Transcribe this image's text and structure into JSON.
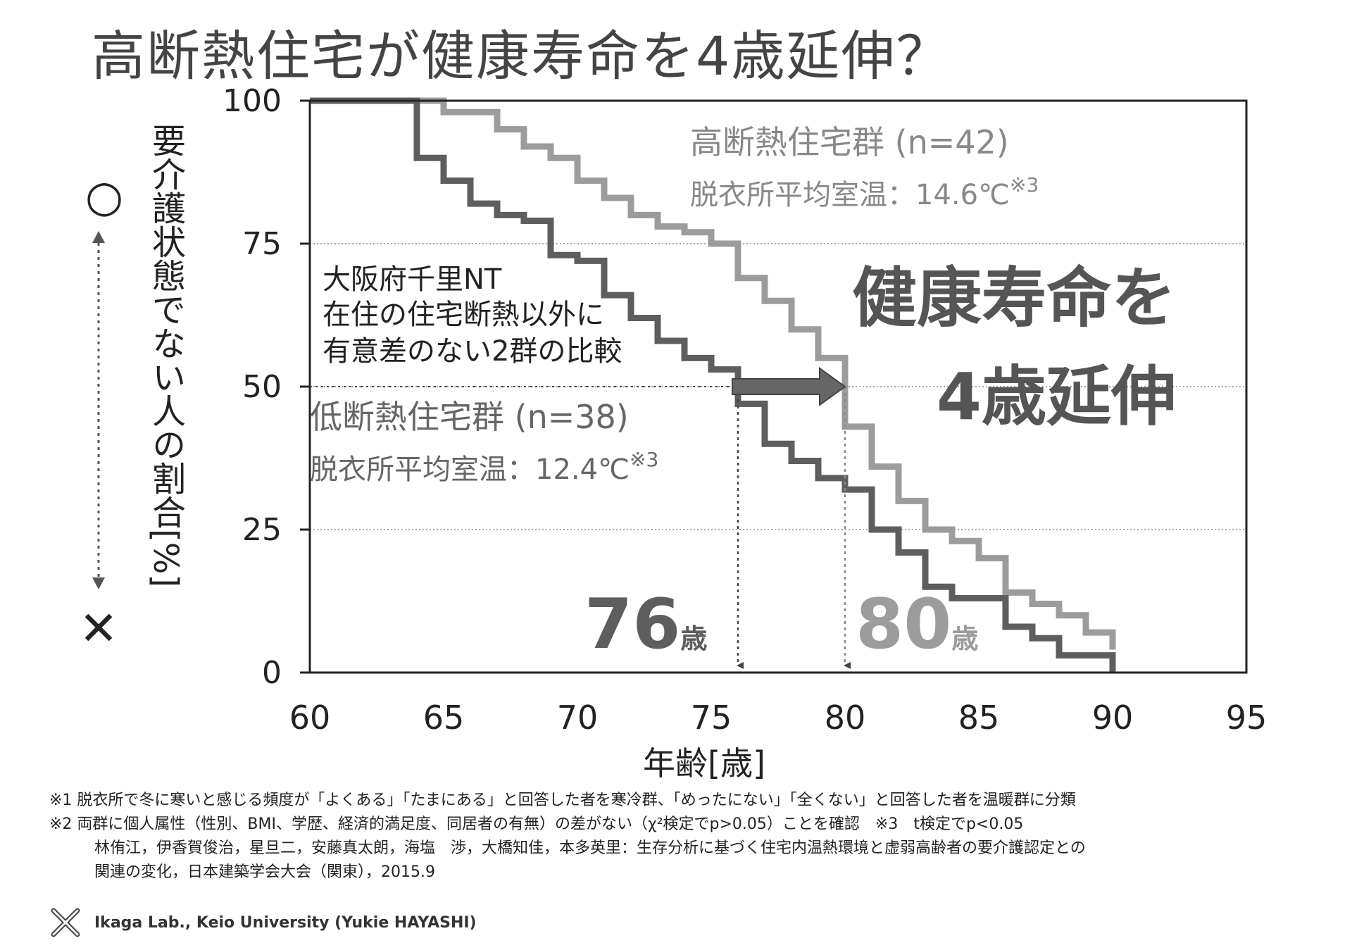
{
  "title": "高断熱住宅が健康寿命を4歳延伸？",
  "colors": {
    "high": "#9c9c9c",
    "low": "#5e5e5e",
    "axis": "#222222",
    "grid": "#888888"
  },
  "chart_data": {
    "type": "line",
    "step": true,
    "xlabel": "年齢[歳]",
    "ylabel": "要介護状態でない人の割合[%]",
    "xlim": [
      60,
      95
    ],
    "ylim": [
      0,
      100
    ],
    "xticks": [
      60,
      65,
      70,
      75,
      80,
      85,
      90,
      95
    ],
    "yticks": [
      0,
      25,
      50,
      75,
      100
    ],
    "grid": "horizontal-dotted",
    "series": [
      {
        "name": "高断熱住宅群 (n=42)",
        "subtitle": "脱衣所平均室温：14.6℃",
        "note": "※3",
        "x": [
          60,
          65,
          66,
          67,
          68,
          69,
          70,
          71,
          72,
          73,
          74,
          75,
          76,
          77,
          78,
          79,
          80,
          81,
          82,
          83,
          84,
          85,
          86,
          87,
          88,
          89,
          90
        ],
        "y": [
          100,
          98,
          98,
          95,
          92,
          90,
          86,
          83,
          80,
          78,
          77,
          75,
          69,
          65,
          60,
          55,
          43,
          36,
          30,
          25,
          23,
          20,
          14,
          12,
          10,
          7,
          4
        ]
      },
      {
        "name": "低断熱住宅群 (n=38)",
        "subtitle": "脱衣所平均室温：12.4℃",
        "note": "※3",
        "x": [
          60,
          64,
          65,
          66,
          67,
          68,
          69,
          70,
          71,
          72,
          73,
          74,
          75,
          76,
          77,
          78,
          79,
          80,
          81,
          82,
          83,
          84,
          85,
          86,
          87,
          88,
          89,
          90
        ],
        "y": [
          100,
          90,
          86,
          82,
          80,
          79,
          73,
          72,
          66,
          62,
          58,
          55,
          53,
          47,
          40,
          37,
          34,
          32,
          25,
          21,
          15,
          13,
          13,
          8,
          6,
          3,
          3,
          0
        ]
      }
    ],
    "annotation_group": [
      "大阪府千里NT",
      "在住の住宅断熱以外に",
      "有意差のない2群の比較"
    ],
    "big_text": [
      "健康寿命を",
      "4歳延伸"
    ],
    "median_low": {
      "value": "76",
      "unit": "歳",
      "x": 76,
      "y": 50
    },
    "median_high": {
      "value": "80",
      "unit": "歳",
      "x": 80,
      "y": 50
    }
  },
  "ylabel_symbols": {
    "top": "○",
    "bottom": "✕"
  },
  "notes": {
    "n1": "※1 脱衣所で冬に寒いと感じる頻度が「よくある」「たまにある」と回答した者を寒冷群、「めったにない」「全くない」と回答した者を温暖群に分類",
    "n2": "※2 両群に個人属性（性別、BMI、学歴、経済的満足度、同居者の有無）の差がない（χ²検定でp>0.05）ことを確認　※3　t検定でp<0.05",
    "ref1": "林侑江，伊香賀俊治，星旦二，安藤真太朗，海塩　渉，大橋知佳，本多英里：生存分析に基づく住宅内温熱環境と虚弱高齢者の要介護認定との",
    "ref2": "関連の変化，日本建築学会大会（関東），2015.9"
  },
  "footer": {
    "text": "Ikaga Lab., Keio University  (Yukie HAYASHI)",
    "logo_icon": "crossed-hands-logo-icon"
  }
}
